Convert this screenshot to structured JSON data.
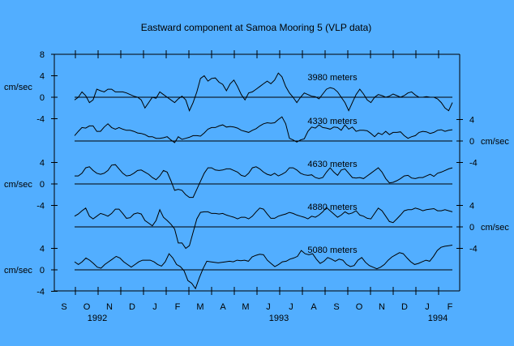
{
  "chart_data": {
    "type": "line",
    "title": "Eastward component at Samoa Mooring 5 (VLP data)",
    "unit_label": "cm/sec",
    "x_months": [
      "S",
      "O",
      "N",
      "D",
      "J",
      "F",
      "M",
      "A",
      "M",
      "J",
      "J",
      "A",
      "S",
      "O",
      "N",
      "D",
      "J",
      "F"
    ],
    "x_years": [
      {
        "label": "1992",
        "month_index": 1.5
      },
      {
        "label": "1993",
        "month_index": 9.5
      },
      {
        "label": "1994",
        "month_index": 16.5
      }
    ],
    "y_ticks": {
      "left_top": [
        "8",
        "4",
        "0",
        "-4"
      ],
      "right_upper": [
        "4",
        "0",
        "-4"
      ],
      "left_middle": [
        "4",
        "0",
        "-4"
      ],
      "right_lower": [
        "4",
        "0",
        "-4"
      ],
      "left_bottom": [
        "4",
        "0",
        "-4"
      ]
    },
    "axis_side_for_series": [
      "left",
      "right",
      "left",
      "right",
      "left"
    ],
    "series": [
      {
        "name": "3980 meters",
        "x_start": 0.5,
        "x_end": 17.2,
        "values": [
          -0.5,
          0,
          1,
          0.3,
          -1,
          -0.5,
          1.5,
          1.2,
          1,
          1.5,
          1.5,
          1,
          1,
          1,
          0.8,
          0.5,
          0.2,
          0,
          -0.5,
          -2,
          -1,
          0,
          -0.2,
          1,
          0.5,
          0,
          -0.5,
          -1,
          -0.3,
          0.2,
          -0.5,
          -2.5,
          -1,
          1,
          3.5,
          4,
          3,
          3.5,
          3.6,
          2.8,
          2.4,
          1.2,
          2.5,
          3.2,
          2,
          0.5,
          -0.5,
          0.8,
          1,
          1.5,
          2,
          2.5,
          3,
          2.5,
          3.2,
          4.5,
          3.8,
          2,
          0.8,
          0,
          -1,
          0,
          0.8,
          0.5,
          0.2,
          0.1,
          -0.3,
          0.6,
          1.5,
          1.8,
          1.6,
          1,
          0,
          -1,
          -2.5,
          -1,
          0.5,
          1.5,
          0.6,
          -0.5,
          -1,
          0,
          0.5,
          0.3,
          0,
          0.2,
          0.6,
          0.3,
          0,
          0.3,
          0.8,
          1,
          0.4,
          0,
          0,
          0.1,
          0,
          0,
          -0.3,
          -1,
          -2,
          -2.5,
          -1
        ]
      },
      {
        "name": "4330 meters",
        "x_start": 0.5,
        "x_end": 17.2,
        "values": [
          1,
          1.8,
          2.5,
          2.4,
          2.8,
          2.8,
          1.8,
          1.8,
          2.6,
          3.2,
          2.5,
          2.2,
          2.5,
          2.2,
          2,
          2,
          1.8,
          1.5,
          1.4,
          1.2,
          0.8,
          0.8,
          0.5,
          0.5,
          0.6,
          0.8,
          0.2,
          -0.3,
          0.8,
          0.3,
          0.5,
          0.7,
          1,
          1,
          0.9,
          1.5,
          2.2,
          2.5,
          2.5,
          2.8,
          3,
          2.6,
          2.7,
          2.6,
          2.4,
          2,
          1.8,
          1.6,
          2,
          2.3,
          2.8,
          3.2,
          3.4,
          3.3,
          3.4,
          4,
          4.5,
          3.2,
          0.5,
          0.2,
          -0.2,
          0.2,
          0.4,
          1.8,
          2.6,
          2.4,
          3,
          2.5,
          2.4,
          2.2,
          2.6,
          2.5,
          2,
          3,
          2.2,
          2.6,
          1.8,
          2,
          2,
          1.9,
          1.4,
          0.8,
          1.5,
          1.2,
          1.8,
          1.2,
          1.6,
          1.6,
          1.7,
          1,
          0.5,
          0.8,
          1,
          1.6,
          1.8,
          1.7,
          1.4,
          1.6,
          2,
          2.1,
          1.8,
          2,
          2.1
        ]
      },
      {
        "name": "4630 meters",
        "x_start": 0.5,
        "x_end": 17.2,
        "values": [
          1.5,
          1.5,
          2,
          3,
          3.2,
          2.5,
          2,
          1.8,
          2,
          2.5,
          3.5,
          3.6,
          2.8,
          2,
          1.5,
          1.6,
          2,
          2.5,
          2.6,
          2.2,
          1.8,
          1.2,
          0.8,
          1.5,
          2.5,
          2.2,
          0.6,
          -1.2,
          -1,
          -1.2,
          -2,
          -2.5,
          -2.5,
          -1,
          0.5,
          2,
          3,
          3,
          2.6,
          2.5,
          2.6,
          2.8,
          2.8,
          2.5,
          2.2,
          1.6,
          1.4,
          2,
          3,
          3.2,
          2.8,
          2.2,
          1.8,
          1.6,
          2,
          1.5,
          1.8,
          2.2,
          3,
          3,
          2.6,
          2,
          1.7,
          1.6,
          1.7,
          1.2,
          1,
          1.2,
          2.2,
          3,
          2.2,
          1.6,
          2.6,
          2.8,
          2,
          1.2,
          1.1,
          1.2,
          1,
          1.5,
          2,
          2.5,
          3,
          2.2,
          1,
          0.2,
          0.3,
          0.6,
          1,
          1.5,
          1.6,
          1.1,
          1,
          1.2,
          1.2,
          1.5,
          1.8,
          1.4,
          2,
          2.2,
          2.5,
          2.8,
          3
        ]
      },
      {
        "name": "4880 meters",
        "x_start": 0.5,
        "x_end": 17.2,
        "values": [
          2,
          2.4,
          3,
          3.5,
          2,
          1.5,
          2,
          2.5,
          2.3,
          2,
          2.5,
          3.3,
          3.3,
          2.5,
          1.6,
          1.7,
          2.4,
          2.6,
          2.4,
          1.2,
          0.7,
          0.2,
          1.2,
          3.2,
          1.8,
          1.2,
          0.5,
          -0.4,
          -3,
          -3,
          -4,
          -3.5,
          -1,
          1.5,
          2.7,
          2.8,
          2.8,
          2.5,
          2.5,
          2.4,
          2.5,
          2.2,
          2,
          1.8,
          1.5,
          1.8,
          1.8,
          1.5,
          2,
          2.8,
          3.5,
          3.3,
          2.4,
          1.6,
          1.6,
          2,
          2.2,
          2.4,
          2.7,
          2.5,
          2.2,
          2,
          1.8,
          1.5,
          2,
          1.8,
          2.2,
          2.8,
          3.6,
          3,
          2.4,
          1.8,
          2.2,
          2.8,
          2.4,
          2.6,
          3,
          2.2,
          2,
          1.6,
          1.5,
          2.5,
          3.5,
          3,
          2,
          1,
          0.8,
          1.5,
          2.2,
          3,
          3.2,
          3.2,
          3.5,
          3.3,
          3,
          3.2,
          3.3,
          3.4,
          3,
          3,
          3.2,
          3,
          2.8
        ]
      },
      {
        "name": "5080 meters",
        "x_start": 0.5,
        "x_end": 17.2,
        "values": [
          1.5,
          1,
          1.5,
          2.2,
          1.8,
          1.2,
          0.5,
          0.3,
          1,
          1.5,
          2,
          2.5,
          2.2,
          1.5,
          1,
          0.5,
          1,
          1.5,
          1.8,
          1.8,
          1.8,
          1.5,
          1,
          0.7,
          1.5,
          3,
          2.2,
          1,
          0.6,
          -0.2,
          -2,
          -2.5,
          -3.5,
          -1.5,
          0.2,
          1.6,
          1.5,
          1.4,
          1.3,
          1.4,
          1.5,
          1.6,
          1.5,
          1.8,
          1.7,
          1.8,
          1.6,
          2.4,
          2.7,
          2.9,
          2.8,
          1.8,
          1.2,
          0.6,
          1,
          1.5,
          1.6,
          2,
          2.2,
          2.5,
          3.6,
          3,
          2.8,
          3,
          2,
          1.2,
          1.6,
          2.3,
          2,
          1.6,
          2,
          1.8,
          1,
          0.6,
          0.8,
          1.8,
          2.3,
          1.4,
          0.8,
          0.5,
          0.2,
          0.5,
          1,
          1.8,
          2.4,
          2.8,
          3.2,
          3,
          2.2,
          1.5,
          1,
          1.2,
          1.5,
          1.8,
          1.6,
          2.5,
          3.6,
          4.2,
          4.4,
          4.5,
          4.6
        ]
      }
    ]
  }
}
